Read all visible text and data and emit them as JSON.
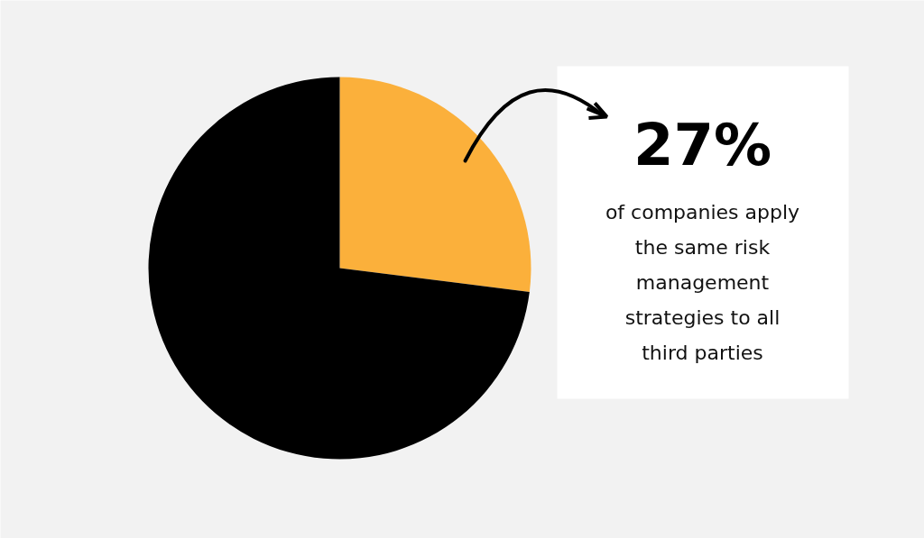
{
  "chart_data": {
    "type": "pie",
    "categories": [
      null,
      null
    ],
    "values": [
      27,
      73
    ],
    "colors": [
      "#fbb03b",
      "#000000"
    ],
    "value_labels": [
      "27%",
      null
    ],
    "annotations": [
      "of companies apply the same risk management strategies to all third parties"
    ]
  }
}
